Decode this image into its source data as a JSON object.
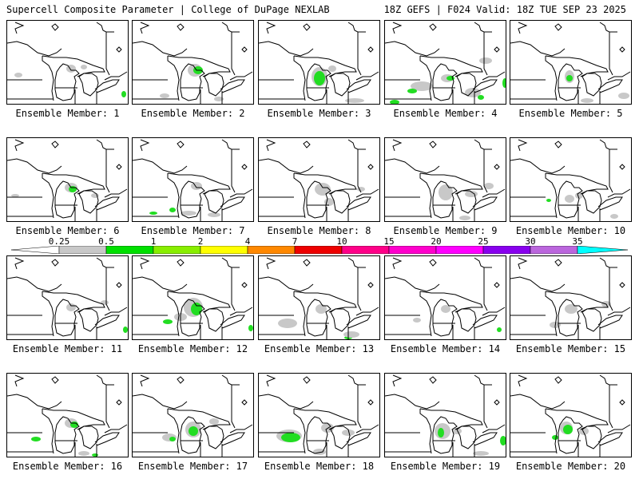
{
  "header": {
    "left": "Supercell Composite Parameter | College of DuPage NEXLAB",
    "right": "18Z GEFS | F024 Valid: 18Z TUE SEP 23 2025"
  },
  "colorbar": {
    "ticks": [
      "0.25",
      "0.5",
      "1",
      "2",
      "4",
      "7",
      "10",
      "15",
      "20",
      "25",
      "30",
      "35"
    ],
    "colors": [
      "#c8c8c8",
      "#00e000",
      "#88ee00",
      "#ffff00",
      "#ff8800",
      "#ee0000",
      "#ff0088",
      "#ff00cc",
      "#ff00ff",
      "#8800ee",
      "#bb66dd",
      "#00ffff"
    ]
  },
  "map": {
    "gray_color": "#c8c8c8",
    "green_color": "#22dd22",
    "line_color": "#000000"
  },
  "members": [
    {
      "label": "Ensemble Member: 1"
    },
    {
      "label": "Ensemble Member: 2"
    },
    {
      "label": "Ensemble Member: 3"
    },
    {
      "label": "Ensemble Member: 4"
    },
    {
      "label": "Ensemble Member: 5"
    },
    {
      "label": "Ensemble Member: 6"
    },
    {
      "label": "Ensemble Member: 7"
    },
    {
      "label": "Ensemble Member: 8"
    },
    {
      "label": "Ensemble Member: 9"
    },
    {
      "label": "Ensemble Member: 10"
    },
    {
      "label": "Ensemble Member: 11"
    },
    {
      "label": "Ensemble Member: 12"
    },
    {
      "label": "Ensemble Member: 13"
    },
    {
      "label": "Ensemble Member: 14"
    },
    {
      "label": "Ensemble Member: 15"
    },
    {
      "label": "Ensemble Member: 16"
    },
    {
      "label": "Ensemble Member: 17"
    },
    {
      "label": "Ensemble Member: 18"
    },
    {
      "label": "Ensemble Member: 19"
    },
    {
      "label": "Ensemble Member: 20"
    }
  ]
}
